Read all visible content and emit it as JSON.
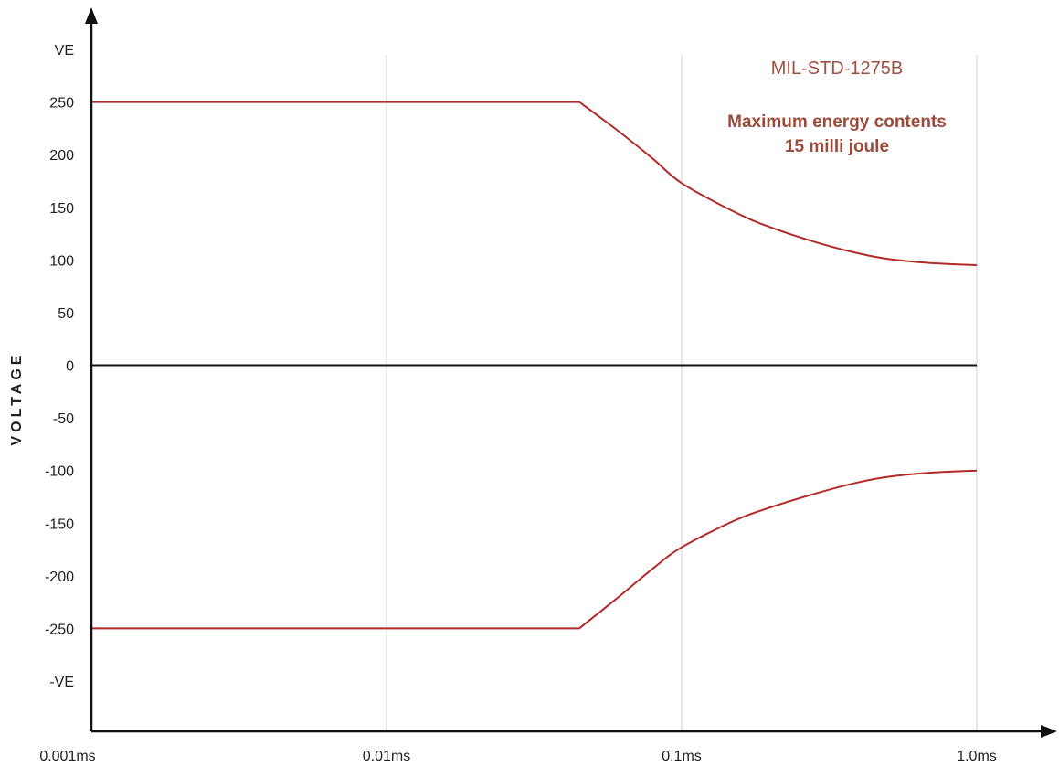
{
  "chart_data": {
    "type": "line",
    "x_scale": "log",
    "x_range_ms": [
      0.001,
      1.0
    ],
    "xticks": [
      {
        "value": 0.001,
        "label": "0.001ms"
      },
      {
        "value": 0.01,
        "label": "0.01ms"
      },
      {
        "value": 0.1,
        "label": "0.1ms"
      },
      {
        "value": 1.0,
        "label": "1.0ms"
      }
    ],
    "y_range": [
      -300,
      300
    ],
    "yticks": [
      {
        "value": 300,
        "label": "VE"
      },
      {
        "value": 250,
        "label": "250"
      },
      {
        "value": 200,
        "label": "200"
      },
      {
        "value": 150,
        "label": "150"
      },
      {
        "value": 100,
        "label": "100"
      },
      {
        "value": 50,
        "label": "50"
      },
      {
        "value": 0,
        "label": "0"
      },
      {
        "value": -50,
        "label": "-50"
      },
      {
        "value": -100,
        "label": "-100"
      },
      {
        "value": -150,
        "label": "-150"
      },
      {
        "value": -200,
        "label": "-200"
      },
      {
        "value": -250,
        "label": "-250"
      },
      {
        "value": -300,
        "label": "-VE"
      }
    ],
    "ylabel": "VOLTAGE",
    "xlabel": "",
    "vertical_gridlines": true,
    "horizontal_gridlines": false,
    "series_color": "#b22a2a",
    "series": [
      {
        "x": [
          0.001,
          0.045,
          0.06,
          0.08,
          0.1,
          0.15,
          0.2,
          0.3,
          0.4,
          0.5,
          0.7,
          1.0
        ],
        "values": [
          250,
          250,
          224,
          196,
          173,
          146,
          131,
          115,
          106,
          101,
          97,
          95
        ]
      },
      {
        "x": [
          0.001,
          0.045,
          0.06,
          0.08,
          0.1,
          0.15,
          0.2,
          0.3,
          0.4,
          0.5,
          0.7,
          1.0
        ],
        "values": [
          -250,
          -250,
          -222,
          -193,
          -173,
          -148,
          -135,
          -120,
          -111,
          -106,
          -102,
          -100
        ]
      }
    ],
    "annotations": [
      {
        "text": "MIL-STD-1275B",
        "color": "#a05040"
      },
      {
        "text": "Maximum energy contents",
        "color": "#9c4a3a"
      },
      {
        "text": "15 milli joule",
        "color": "#9c4a3a"
      }
    ]
  }
}
